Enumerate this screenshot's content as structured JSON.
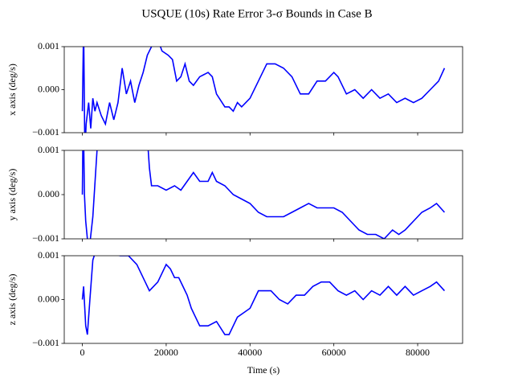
{
  "title": "USQUE (10s) Rate Error 3-σ Bounds in Case B",
  "chart_data": [
    {
      "type": "line",
      "ylabel": "x axis (deg/s)",
      "x": [
        0,
        300,
        600,
        900,
        1500,
        2000,
        2500,
        3000,
        3500,
        4500,
        5500,
        6500,
        7500,
        8500,
        9500,
        10500,
        11500,
        12500,
        13500,
        14500,
        15500,
        16500,
        17500,
        19000,
        20500,
        21500,
        22500,
        23500,
        24500,
        25500,
        26500,
        28000,
        30000,
        31000,
        32000,
        34000,
        35000,
        36000,
        37000,
        38000,
        40000,
        42000,
        44000,
        46000,
        48000,
        50000,
        52000,
        54000,
        56000,
        58000,
        60000,
        61000,
        63000,
        65000,
        67000,
        69000,
        71000,
        73000,
        75000,
        77000,
        79000,
        81000,
        83000,
        85000,
        86400
      ],
      "series": [
        {
          "color": "#0000ff",
          "values": [
            -0.0005,
            0.0015,
            -0.0015,
            -0.0008,
            -0.0003,
            -0.0009,
            -0.0002,
            -0.0005,
            -0.0003,
            -0.0006,
            -0.0008,
            -0.0003,
            -0.0007,
            -0.0003,
            0.0005,
            -0.0001,
            0.0002,
            -0.0003,
            0.0001,
            0.0004,
            0.0008,
            0.001,
            0.0013,
            0.0009,
            0.0008,
            0.0007,
            0.0002,
            0.0003,
            0.0006,
            0.0002,
            0.0001,
            0.0003,
            0.0004,
            0.0003,
            -0.0001,
            -0.0004,
            -0.0004,
            -0.0005,
            -0.0003,
            -0.0004,
            -0.0002,
            0.0002,
            0.0006,
            0.0006,
            0.0005,
            0.0003,
            -0.0001,
            -0.0001,
            0.0002,
            0.0002,
            0.0004,
            0.0003,
            -0.0001,
            0.0,
            -0.0002,
            0.0,
            -0.0002,
            -0.0001,
            -0.0003,
            -0.0002,
            -0.0003,
            -0.0002,
            0.0,
            0.0002,
            0.0005
          ]
        }
      ],
      "xlim": [
        -4320,
        90720
      ],
      "xticks": [
        0,
        20000,
        40000,
        60000,
        80000
      ],
      "ylim": [
        -0.001,
        0.001
      ],
      "yticks": [
        {
          "value": -0.001,
          "label": "−0.001"
        },
        {
          "value": 0,
          "label": "0.000"
        },
        {
          "value": 0.001,
          "label": "0.001"
        }
      ]
    },
    {
      "type": "line",
      "ylabel": "y axis (deg/s)",
      "x": [
        0,
        200,
        500,
        800,
        1200,
        1800,
        2500,
        3500,
        4500,
        15000,
        16000,
        16500,
        18000,
        20000,
        22000,
        23500,
        25000,
        26500,
        28000,
        30000,
        31000,
        32000,
        34000,
        36000,
        38000,
        40000,
        42000,
        44000,
        46000,
        48000,
        50000,
        52000,
        54000,
        56000,
        58000,
        60000,
        62000,
        64000,
        66000,
        68000,
        70000,
        72000,
        74000,
        75500,
        77000,
        79000,
        81000,
        83000,
        84500,
        86400
      ],
      "series": [
        {
          "color": "#0000ff",
          "values": [
            0.0,
            0.002,
            0.0,
            -0.0006,
            -0.001,
            -0.0011,
            -0.0005,
            0.001,
            0.002,
            0.002,
            0.0006,
            0.0002,
            0.0002,
            0.0001,
            0.0002,
            0.0001,
            0.0003,
            0.0005,
            0.0003,
            0.0003,
            0.0005,
            0.0003,
            0.0002,
            0.0,
            -0.0001,
            -0.0002,
            -0.0004,
            -0.0005,
            -0.0005,
            -0.0005,
            -0.0004,
            -0.0003,
            -0.0002,
            -0.0003,
            -0.0003,
            -0.0003,
            -0.0004,
            -0.0006,
            -0.0008,
            -0.0009,
            -0.0009,
            -0.001,
            -0.0008,
            -0.0009,
            -0.0008,
            -0.0006,
            -0.0004,
            -0.0003,
            -0.0002,
            -0.0004
          ]
        }
      ],
      "xlim": [
        -4320,
        90720
      ],
      "xticks": [
        0,
        20000,
        40000,
        60000,
        80000
      ],
      "ylim": [
        -0.001,
        0.001
      ],
      "yticks": [
        {
          "value": -0.001,
          "label": "−0.001"
        },
        {
          "value": 0,
          "label": "0.000"
        },
        {
          "value": 0.001,
          "label": "0.001"
        }
      ]
    },
    {
      "type": "line",
      "ylabel": "z axis (deg/s)",
      "xlabel": "Time (s)",
      "x": [
        0,
        300,
        800,
        1200,
        1800,
        2500,
        3500,
        6000,
        9000,
        11000,
        13000,
        15000,
        16000,
        18000,
        20000,
        21000,
        22000,
        23000,
        24000,
        25000,
        26000,
        27000,
        28000,
        30000,
        32000,
        34000,
        35000,
        37000,
        38500,
        40000,
        42000,
        43000,
        45000,
        47000,
        49000,
        51000,
        53000,
        55000,
        57000,
        59000,
        61000,
        63000,
        65000,
        67000,
        69000,
        71000,
        73000,
        75000,
        77000,
        79000,
        81000,
        83000,
        84500,
        86400
      ],
      "series": [
        {
          "color": "#0000ff",
          "values": [
            0.0,
            0.0003,
            -0.0006,
            -0.0008,
            0.0,
            0.0009,
            0.0012,
            0.0011,
            0.001,
            0.001,
            0.0008,
            0.0004,
            0.0002,
            0.0004,
            0.0008,
            0.0007,
            0.0005,
            0.0005,
            0.0003,
            0.0001,
            -0.0002,
            -0.0004,
            -0.0006,
            -0.0006,
            -0.0005,
            -0.0008,
            -0.0008,
            -0.0004,
            -0.0003,
            -0.0002,
            0.0002,
            0.0002,
            0.0002,
            0.0,
            -0.0001,
            0.0001,
            0.0001,
            0.0003,
            0.0004,
            0.0004,
            0.0002,
            0.0001,
            0.0002,
            0.0,
            0.0002,
            0.0001,
            0.0003,
            0.0001,
            0.0003,
            0.0001,
            0.0002,
            0.0003,
            0.0004,
            0.0002
          ]
        }
      ],
      "xlim": [
        -4320,
        90720
      ],
      "xticks": [
        0,
        20000,
        40000,
        60000,
        80000
      ],
      "ylim": [
        -0.001,
        0.001
      ],
      "yticks": [
        {
          "value": -0.001,
          "label": "−0.001"
        },
        {
          "value": 0,
          "label": "0.000"
        },
        {
          "value": 0.001,
          "label": "0.001"
        }
      ]
    }
  ]
}
